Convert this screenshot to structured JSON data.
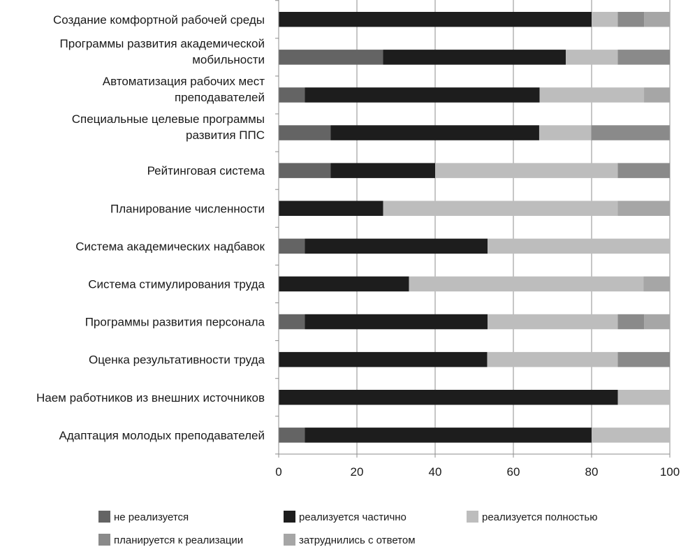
{
  "chart_data": {
    "type": "bar",
    "orientation": "horizontal",
    "stacked": true,
    "title": "",
    "xlabel": "",
    "ylabel": "",
    "xlim": [
      0,
      100
    ],
    "xticks": [
      "0",
      "20",
      "40",
      "60",
      "80",
      "100"
    ],
    "grid": true,
    "legend_position": "bottom",
    "categories": [
      [
        "Создание комфортной рабочей среды"
      ],
      [
        "Программы развития академической",
        "мобильности"
      ],
      [
        "Автоматизация рабочих мест",
        "преподавателей"
      ],
      [
        "Специальные целевые программы",
        "развития ППС"
      ],
      [
        "Рейтинговая система"
      ],
      [
        "Планирование численности"
      ],
      [
        "Система академических надбавок"
      ],
      [
        "Система стимулирования труда"
      ],
      [
        "Программы развития персонала"
      ],
      [
        "Оценка результативности труда"
      ],
      [
        "Наем работников из внешних источников"
      ],
      [
        "Адаптация молодых преподавателей"
      ]
    ],
    "series": [
      {
        "name": "не реализуется",
        "color": "#646464",
        "values": [
          0,
          26.7,
          6.7,
          13.3,
          13.3,
          0,
          6.7,
          0,
          6.7,
          0,
          0,
          6.7
        ]
      },
      {
        "name": "реализуется частично",
        "color": "#1d1d1d",
        "values": [
          80,
          46.7,
          60,
          53.3,
          26.7,
          26.7,
          46.7,
          33.3,
          46.7,
          53.3,
          86.7,
          73.3
        ]
      },
      {
        "name": "реализуется полностью",
        "color": "#bdbdbd",
        "values": [
          6.7,
          13.3,
          26.7,
          13.3,
          46.7,
          60,
          46.6,
          60,
          33.3,
          33.4,
          13.3,
          20
        ]
      },
      {
        "name": "планируется к реализации",
        "color": "#8a8a8a",
        "values": [
          6.7,
          13.3,
          0,
          20,
          13.3,
          0,
          0,
          0,
          6.7,
          13.3,
          0,
          0
        ]
      },
      {
        "name": "затруднились с ответом",
        "color": "#a6a6a6",
        "values": [
          6.6,
          0,
          6.6,
          0,
          0,
          13.3,
          0,
          6.7,
          6.6,
          0,
          0,
          0
        ]
      }
    ]
  }
}
